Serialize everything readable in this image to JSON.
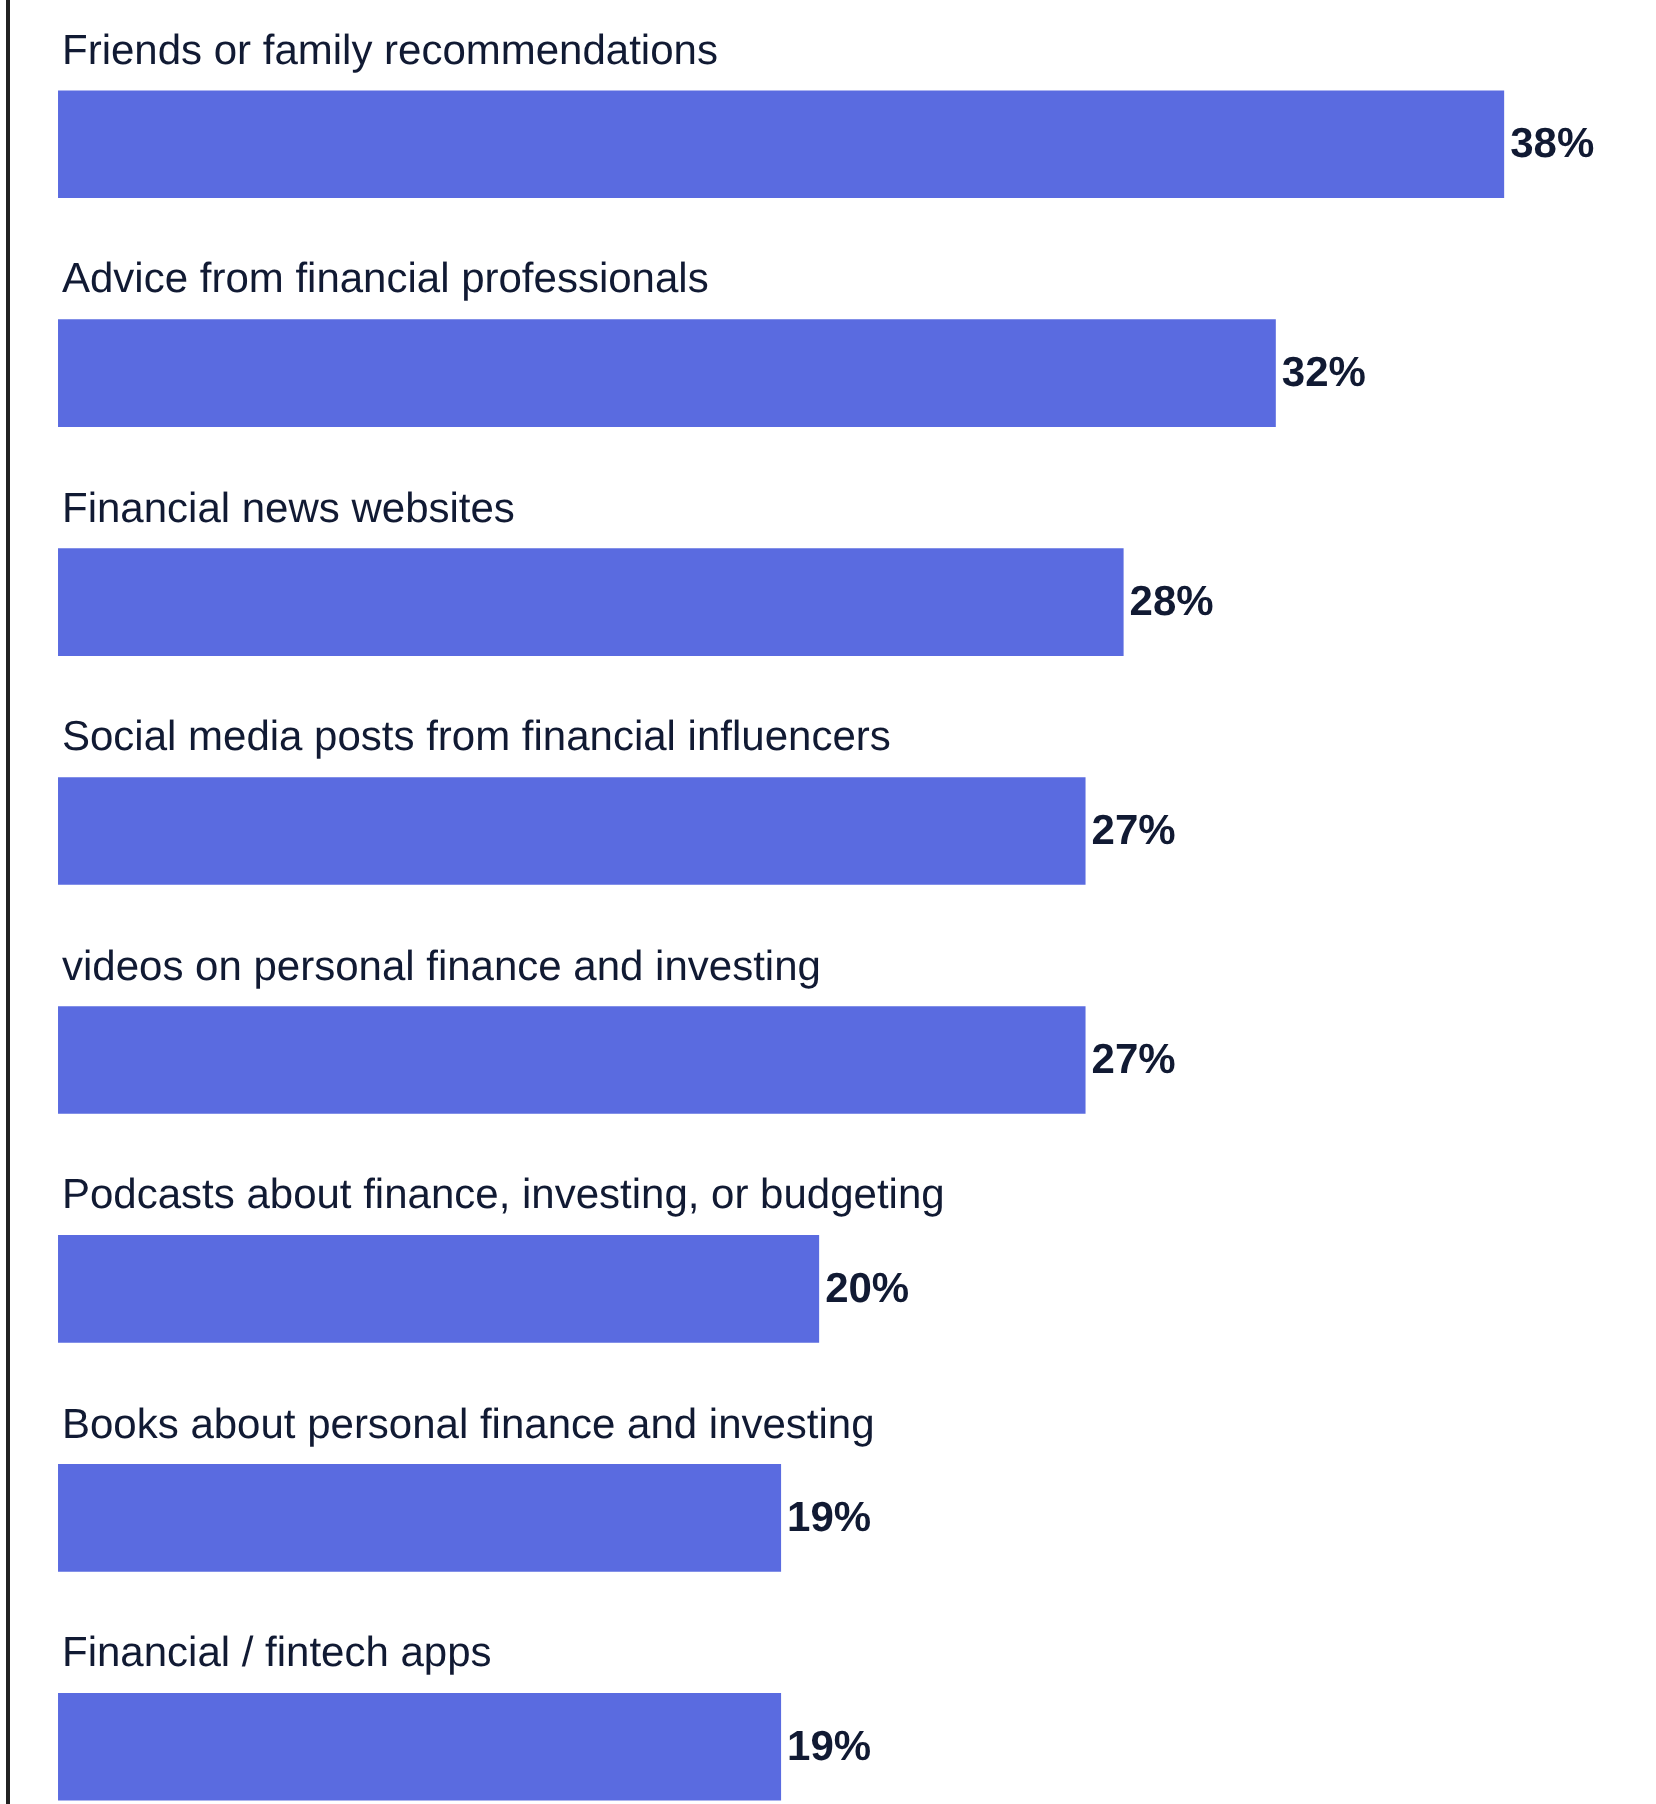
{
  "chart_data": {
    "type": "bar",
    "orientation": "horizontal",
    "categories": [
      "Friends or family recommendations",
      "Advice from financial professionals",
      "Financial news websites",
      "Social media posts from financial influencers",
      "videos on personal finance and investing",
      "Podcasts about finance, investing, or budgeting",
      "Books about personal finance and investing",
      "Financial / fintech apps"
    ],
    "values": [
      38,
      32,
      28,
      27,
      27,
      20,
      19,
      19
    ],
    "value_labels": [
      "38%",
      "32%",
      "28%",
      "27%",
      "27%",
      "20%",
      "19%",
      "19%"
    ],
    "color": "#5a6be0",
    "tick_labels": false
  }
}
